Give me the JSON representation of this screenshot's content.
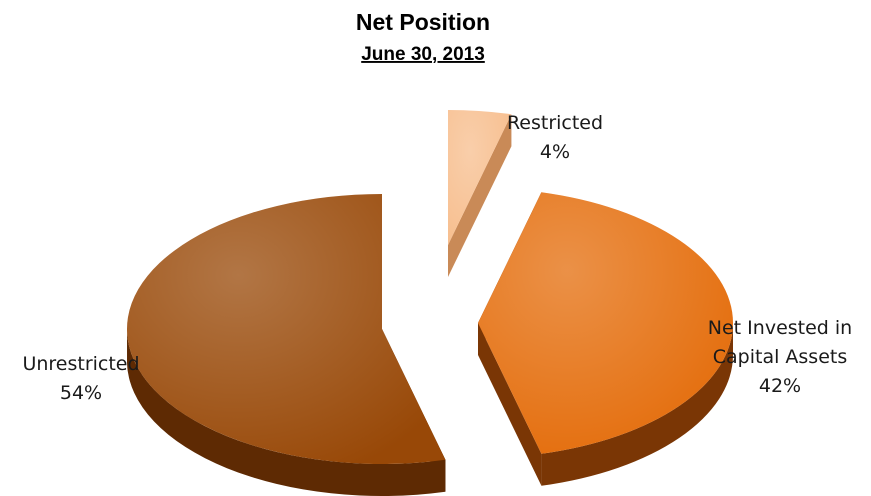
{
  "chart_data": {
    "type": "pie",
    "title": "Net Position",
    "subtitle": "June 30, 2013",
    "three_d": true,
    "exploded": true,
    "slices": [
      {
        "name": "Restricted",
        "label_lines": [
          "Restricted"
        ],
        "value": 4,
        "value_label": "4%",
        "color": "#F7BE8E",
        "side_color": "#C98A57"
      },
      {
        "name": "Net Invested in Capital Assets",
        "label_lines": [
          "Net Invested in",
          "Capital Assets"
        ],
        "value": 42,
        "value_label": "42%",
        "color": "#E46C0A",
        "side_color": "#7A3605"
      },
      {
        "name": "Unrestricted",
        "label_lines": [
          "Unrestricted"
        ],
        "value": 54,
        "value_label": "54%",
        "color": "#984807",
        "side_color": "#5E2A03"
      }
    ]
  }
}
